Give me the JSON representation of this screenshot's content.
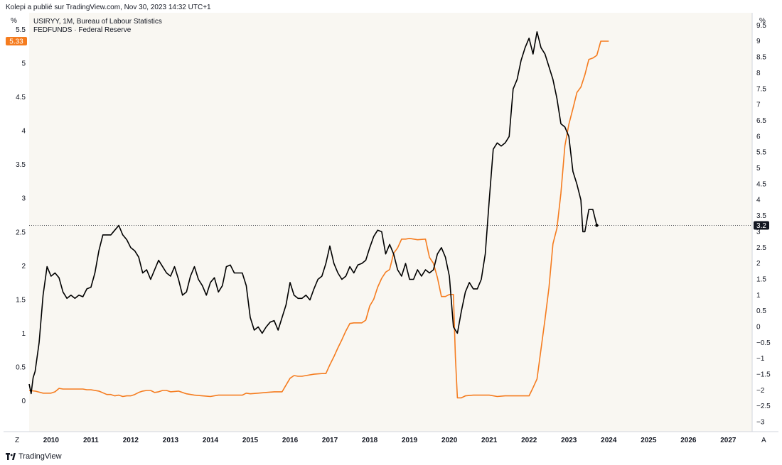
{
  "header": {
    "caption": "Kolepi a publié sur TradingView.com, Nov 30, 2023 14:32 UTC+1"
  },
  "brand": {
    "name": "TradingView"
  },
  "corner": {
    "unit_left": "%",
    "unit_right": "%",
    "bottom_left": "Z",
    "bottom_right": "A"
  },
  "colors": {
    "background": "#f9f7f2",
    "series1": "#000000",
    "series2": "#f57c1f",
    "axis_bg": "#ffffff"
  },
  "chart_data": {
    "type": "line",
    "legend": [
      "USIRYY, 1M, Bureau of Labour Statistics",
      "FEDFUNDS · Federal Reserve"
    ],
    "x_ticks": [
      "2010",
      "2011",
      "2012",
      "2013",
      "2014",
      "2015",
      "2016",
      "2017",
      "2018",
      "2019",
      "2020",
      "2021",
      "2022",
      "2023",
      "2024",
      "2025",
      "2026",
      "2027"
    ],
    "left_axis": {
      "range": [
        -0.45,
        5.75
      ],
      "ticks": [
        "0",
        "0.5",
        "1",
        "1.5",
        "2",
        "2.5",
        "3",
        "3.5",
        "4",
        "4.5",
        "5",
        "5.5"
      ]
    },
    "right_axis": {
      "range": [
        -3.3,
        9.9
      ],
      "ticks": [
        "−3",
        "−2.5",
        "−2",
        "−1.5",
        "−1",
        "−0.5",
        "0",
        "0.5",
        "1",
        "1.5",
        "2",
        "2.5",
        "3",
        "3.5",
        "4",
        "4.5",
        "5",
        "5.5",
        "6",
        "6.5",
        "7",
        "7.5",
        "8",
        "8.5",
        "9",
        "9.5"
      ]
    },
    "crosshair": {
      "right_value": 3.2
    },
    "last_value_badges": {
      "left": "5.33",
      "right": "3.2"
    },
    "series": [
      {
        "name": "USIRYY",
        "axis": "right",
        "color": "#000000",
        "points": [
          [
            2009.45,
            -1.8
          ],
          [
            2009.5,
            -2.1
          ],
          [
            2009.55,
            -1.6
          ],
          [
            2009.6,
            -1.4
          ],
          [
            2009.7,
            -0.5
          ],
          [
            2009.8,
            1.0
          ],
          [
            2009.9,
            1.9
          ],
          [
            2010.0,
            1.6
          ],
          [
            2010.1,
            1.7
          ],
          [
            2010.2,
            1.55
          ],
          [
            2010.3,
            1.1
          ],
          [
            2010.4,
            0.9
          ],
          [
            2010.5,
            1.0
          ],
          [
            2010.6,
            0.9
          ],
          [
            2010.7,
            1.0
          ],
          [
            2010.8,
            0.95
          ],
          [
            2010.9,
            1.2
          ],
          [
            2011.0,
            1.25
          ],
          [
            2011.1,
            1.7
          ],
          [
            2011.2,
            2.4
          ],
          [
            2011.3,
            2.9
          ],
          [
            2011.4,
            2.9
          ],
          [
            2011.5,
            2.9
          ],
          [
            2011.6,
            3.05
          ],
          [
            2011.7,
            3.2
          ],
          [
            2011.8,
            2.9
          ],
          [
            2011.9,
            2.75
          ],
          [
            2012.0,
            2.5
          ],
          [
            2012.1,
            2.4
          ],
          [
            2012.2,
            2.2
          ],
          [
            2012.3,
            1.7
          ],
          [
            2012.4,
            1.8
          ],
          [
            2012.5,
            1.5
          ],
          [
            2012.6,
            1.8
          ],
          [
            2012.7,
            2.1
          ],
          [
            2012.8,
            1.9
          ],
          [
            2012.9,
            1.7
          ],
          [
            2013.0,
            1.6
          ],
          [
            2013.1,
            1.9
          ],
          [
            2013.2,
            1.5
          ],
          [
            2013.3,
            1.0
          ],
          [
            2013.4,
            1.1
          ],
          [
            2013.5,
            1.6
          ],
          [
            2013.6,
            1.9
          ],
          [
            2013.7,
            1.5
          ],
          [
            2013.8,
            1.3
          ],
          [
            2013.9,
            1.0
          ],
          [
            2014.0,
            1.4
          ],
          [
            2014.1,
            1.55
          ],
          [
            2014.2,
            1.1
          ],
          [
            2014.3,
            1.3
          ],
          [
            2014.4,
            1.9
          ],
          [
            2014.5,
            1.95
          ],
          [
            2014.6,
            1.7
          ],
          [
            2014.7,
            1.7
          ],
          [
            2014.8,
            1.7
          ],
          [
            2014.9,
            1.3
          ],
          [
            2015.0,
            0.3
          ],
          [
            2015.1,
            -0.1
          ],
          [
            2015.2,
            0.0
          ],
          [
            2015.3,
            -0.2
          ],
          [
            2015.4,
            0.0
          ],
          [
            2015.5,
            0.15
          ],
          [
            2015.6,
            0.2
          ],
          [
            2015.7,
            -0.1
          ],
          [
            2015.8,
            0.3
          ],
          [
            2015.9,
            0.7
          ],
          [
            2016.0,
            1.4
          ],
          [
            2016.1,
            1.0
          ],
          [
            2016.2,
            0.9
          ],
          [
            2016.3,
            0.9
          ],
          [
            2016.4,
            1.0
          ],
          [
            2016.5,
            0.85
          ],
          [
            2016.6,
            1.2
          ],
          [
            2016.7,
            1.5
          ],
          [
            2016.8,
            1.6
          ],
          [
            2016.9,
            2.0
          ],
          [
            2017.0,
            2.55
          ],
          [
            2017.1,
            2.0
          ],
          [
            2017.2,
            1.7
          ],
          [
            2017.3,
            1.5
          ],
          [
            2017.4,
            1.6
          ],
          [
            2017.5,
            1.9
          ],
          [
            2017.6,
            1.7
          ],
          [
            2017.7,
            1.95
          ],
          [
            2017.8,
            2.0
          ],
          [
            2017.9,
            2.1
          ],
          [
            2018.0,
            2.5
          ],
          [
            2018.1,
            2.85
          ],
          [
            2018.2,
            3.05
          ],
          [
            2018.3,
            3.0
          ],
          [
            2018.4,
            2.3
          ],
          [
            2018.5,
            2.6
          ],
          [
            2018.6,
            2.3
          ],
          [
            2018.7,
            1.8
          ],
          [
            2018.8,
            1.6
          ],
          [
            2018.9,
            2.0
          ],
          [
            2019.0,
            1.5
          ],
          [
            2019.1,
            1.5
          ],
          [
            2019.2,
            1.8
          ],
          [
            2019.3,
            1.6
          ],
          [
            2019.4,
            1.8
          ],
          [
            2019.5,
            1.7
          ],
          [
            2019.6,
            1.8
          ],
          [
            2019.7,
            2.3
          ],
          [
            2019.8,
            2.5
          ],
          [
            2019.9,
            2.2
          ],
          [
            2020.0,
            1.6
          ],
          [
            2020.1,
            0.0
          ],
          [
            2020.2,
            -0.2
          ],
          [
            2020.3,
            0.5
          ],
          [
            2020.4,
            1.1
          ],
          [
            2020.5,
            1.4
          ],
          [
            2020.6,
            1.2
          ],
          [
            2020.7,
            1.2
          ],
          [
            2020.8,
            1.5
          ],
          [
            2020.9,
            2.3
          ],
          [
            2021.0,
            4.0
          ],
          [
            2021.1,
            5.6
          ],
          [
            2021.2,
            5.8
          ],
          [
            2021.3,
            5.7
          ],
          [
            2021.4,
            5.8
          ],
          [
            2021.5,
            6.0
          ],
          [
            2021.6,
            7.5
          ],
          [
            2021.7,
            7.8
          ],
          [
            2021.8,
            8.4
          ],
          [
            2021.9,
            8.8
          ],
          [
            2022.0,
            9.1
          ],
          [
            2022.1,
            8.6
          ],
          [
            2022.2,
            9.3
          ],
          [
            2022.3,
            8.8
          ],
          [
            2022.4,
            8.6
          ],
          [
            2022.5,
            8.2
          ],
          [
            2022.6,
            7.8
          ],
          [
            2022.7,
            7.2
          ],
          [
            2022.8,
            6.4
          ],
          [
            2022.9,
            6.3
          ],
          [
            2023.0,
            6.0
          ],
          [
            2023.1,
            4.9
          ],
          [
            2023.2,
            4.5
          ],
          [
            2023.3,
            4.0
          ],
          [
            2023.35,
            3.0
          ],
          [
            2023.4,
            3.0
          ],
          [
            2023.5,
            3.7
          ],
          [
            2023.6,
            3.7
          ],
          [
            2023.7,
            3.2
          ]
        ]
      },
      {
        "name": "FEDFUNDS",
        "axis": "left",
        "color": "#f57c1f",
        "points": [
          [
            2009.45,
            0.16
          ],
          [
            2009.6,
            0.15
          ],
          [
            2009.8,
            0.12
          ],
          [
            2010.0,
            0.12
          ],
          [
            2010.1,
            0.14
          ],
          [
            2010.2,
            0.19
          ],
          [
            2010.3,
            0.18
          ],
          [
            2010.4,
            0.18
          ],
          [
            2010.6,
            0.18
          ],
          [
            2010.8,
            0.18
          ],
          [
            2010.9,
            0.17
          ],
          [
            2011.0,
            0.17
          ],
          [
            2011.2,
            0.15
          ],
          [
            2011.4,
            0.1
          ],
          [
            2011.5,
            0.1
          ],
          [
            2011.6,
            0.08
          ],
          [
            2011.7,
            0.09
          ],
          [
            2011.8,
            0.07
          ],
          [
            2011.9,
            0.08
          ],
          [
            2012.0,
            0.08
          ],
          [
            2012.1,
            0.1
          ],
          [
            2012.2,
            0.13
          ],
          [
            2012.3,
            0.15
          ],
          [
            2012.4,
            0.16
          ],
          [
            2012.5,
            0.16
          ],
          [
            2012.6,
            0.13
          ],
          [
            2012.7,
            0.14
          ],
          [
            2012.8,
            0.16
          ],
          [
            2012.9,
            0.16
          ],
          [
            2013.0,
            0.14
          ],
          [
            2013.2,
            0.15
          ],
          [
            2013.4,
            0.11
          ],
          [
            2013.6,
            0.09
          ],
          [
            2013.8,
            0.08
          ],
          [
            2014.0,
            0.07
          ],
          [
            2014.2,
            0.09
          ],
          [
            2014.4,
            0.09
          ],
          [
            2014.6,
            0.09
          ],
          [
            2014.8,
            0.09
          ],
          [
            2014.9,
            0.12
          ],
          [
            2015.0,
            0.11
          ],
          [
            2015.2,
            0.12
          ],
          [
            2015.4,
            0.13
          ],
          [
            2015.6,
            0.14
          ],
          [
            2015.8,
            0.14
          ],
          [
            2015.9,
            0.24
          ],
          [
            2016.0,
            0.34
          ],
          [
            2016.1,
            0.38
          ],
          [
            2016.2,
            0.37
          ],
          [
            2016.3,
            0.37
          ],
          [
            2016.4,
            0.38
          ],
          [
            2016.6,
            0.4
          ],
          [
            2016.8,
            0.41
          ],
          [
            2016.9,
            0.41
          ],
          [
            2017.0,
            0.54
          ],
          [
            2017.1,
            0.66
          ],
          [
            2017.2,
            0.79
          ],
          [
            2017.3,
            0.91
          ],
          [
            2017.4,
            1.04
          ],
          [
            2017.5,
            1.15
          ],
          [
            2017.6,
            1.16
          ],
          [
            2017.7,
            1.16
          ],
          [
            2017.8,
            1.16
          ],
          [
            2017.9,
            1.2
          ],
          [
            2018.0,
            1.41
          ],
          [
            2018.1,
            1.51
          ],
          [
            2018.2,
            1.69
          ],
          [
            2018.3,
            1.82
          ],
          [
            2018.4,
            1.91
          ],
          [
            2018.5,
            1.95
          ],
          [
            2018.6,
            2.19
          ],
          [
            2018.7,
            2.27
          ],
          [
            2018.8,
            2.4
          ],
          [
            2018.9,
            2.4
          ],
          [
            2019.0,
            2.41
          ],
          [
            2019.2,
            2.39
          ],
          [
            2019.4,
            2.4
          ],
          [
            2019.5,
            2.13
          ],
          [
            2019.6,
            2.04
          ],
          [
            2019.7,
            1.83
          ],
          [
            2019.8,
            1.55
          ],
          [
            2019.9,
            1.55
          ],
          [
            2020.0,
            1.58
          ],
          [
            2020.1,
            1.58
          ],
          [
            2020.15,
            0.65
          ],
          [
            2020.2,
            0.05
          ],
          [
            2020.3,
            0.05
          ],
          [
            2020.4,
            0.08
          ],
          [
            2020.6,
            0.09
          ],
          [
            2020.8,
            0.09
          ],
          [
            2020.9,
            0.09
          ],
          [
            2021.0,
            0.09
          ],
          [
            2021.2,
            0.07
          ],
          [
            2021.4,
            0.08
          ],
          [
            2021.6,
            0.08
          ],
          [
            2021.8,
            0.08
          ],
          [
            2022.0,
            0.08
          ],
          [
            2022.1,
            0.2
          ],
          [
            2022.2,
            0.33
          ],
          [
            2022.3,
            0.77
          ],
          [
            2022.4,
            1.21
          ],
          [
            2022.5,
            1.68
          ],
          [
            2022.6,
            2.33
          ],
          [
            2022.7,
            2.56
          ],
          [
            2022.8,
            3.08
          ],
          [
            2022.9,
            3.78
          ],
          [
            2023.0,
            4.1
          ],
          [
            2023.1,
            4.33
          ],
          [
            2023.2,
            4.57
          ],
          [
            2023.3,
            4.65
          ],
          [
            2023.4,
            4.83
          ],
          [
            2023.5,
            5.06
          ],
          [
            2023.6,
            5.08
          ],
          [
            2023.7,
            5.12
          ],
          [
            2023.8,
            5.33
          ],
          [
            2023.9,
            5.33
          ],
          [
            2024.0,
            5.33
          ]
        ]
      }
    ]
  }
}
